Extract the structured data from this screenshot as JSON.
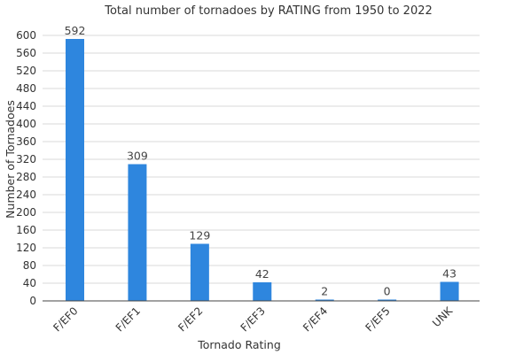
{
  "chart_data": {
    "type": "bar",
    "title": "Total number of tornadoes by RATING from 1950 to 2022",
    "xlabel": "Tornado Rating",
    "ylabel": "Number of Tornadoes",
    "categories": [
      "F/EF0",
      "F/EF1",
      "F/EF2",
      "F/EF3",
      "F/EF4",
      "F/EF5",
      "UNK"
    ],
    "values": [
      592,
      309,
      129,
      42,
      2,
      0,
      43
    ],
    "data_labels": [
      "592",
      "309",
      "129",
      "42",
      "2",
      "0",
      "43"
    ],
    "ylim": [
      0,
      600
    ],
    "yticks": [
      0,
      40,
      80,
      120,
      160,
      200,
      240,
      280,
      320,
      360,
      400,
      440,
      480,
      520,
      560,
      600
    ],
    "grid": true,
    "bar_color": "#2e86de"
  }
}
